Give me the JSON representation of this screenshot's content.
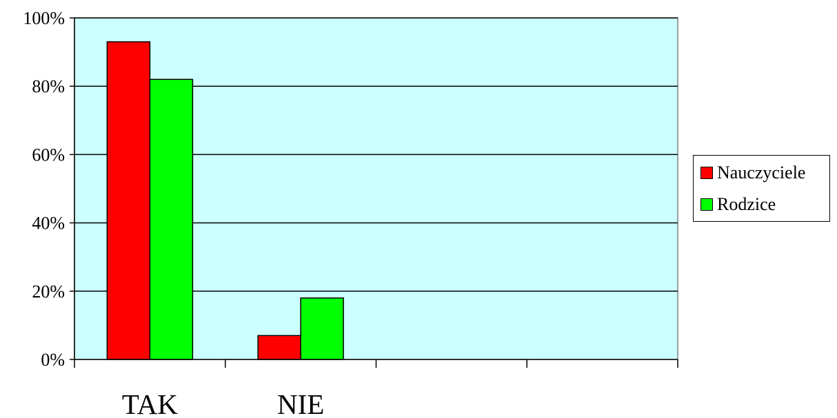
{
  "chart_data": {
    "type": "bar",
    "categories": [
      "TAK",
      "NIE",
      "",
      ""
    ],
    "series": [
      {
        "name": "Nauczyciele",
        "color": "#ff0000",
        "values": [
          93,
          7,
          null,
          null
        ]
      },
      {
        "name": "Rodzice",
        "color": "#00ff00",
        "values": [
          82,
          18,
          null,
          null
        ]
      }
    ],
    "ylim": [
      0,
      100
    ],
    "yticks": [
      "0%",
      "20%",
      "40%",
      "60%",
      "80%",
      "100%"
    ],
    "plot_background": "#ccffff",
    "grid": true,
    "legend_position": "right"
  }
}
